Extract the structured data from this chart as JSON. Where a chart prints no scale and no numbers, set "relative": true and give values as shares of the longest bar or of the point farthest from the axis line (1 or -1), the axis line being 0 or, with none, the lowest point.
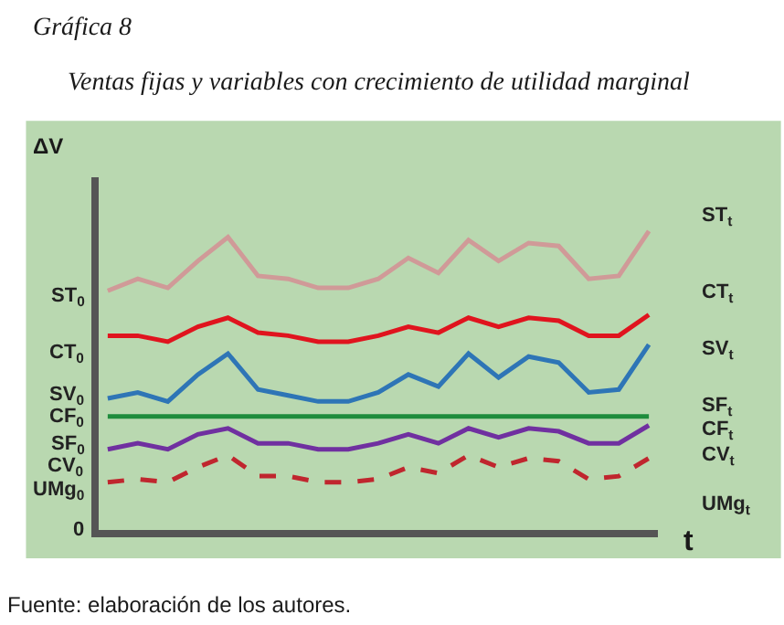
{
  "chart_data": {
    "type": "line",
    "title": "Gráfica 8",
    "subtitle": "Ventas fijas y variables con crecimiento de utilidad marginal",
    "ylabel": "ΔV",
    "xlabel": "t",
    "relative": true,
    "marker": "none",
    "categories": [
      null,
      null,
      null,
      null,
      null,
      null,
      null,
      null,
      null,
      null,
      null,
      null,
      null,
      null,
      null,
      null,
      null,
      null,
      null
    ],
    "series": [
      {
        "color": "#d09a98",
        "values": [
          0.8,
          0.84,
          0.81,
          0.9,
          0.98,
          0.85,
          0.84,
          0.81,
          0.81,
          0.84,
          0.91,
          0.86,
          0.97,
          0.9,
          0.96,
          0.95,
          0.84,
          0.85,
          1.0
        ]
      },
      {
        "color": "#e0141e",
        "values": [
          0.65,
          0.65,
          0.63,
          0.68,
          0.71,
          0.66,
          0.65,
          0.63,
          0.63,
          0.65,
          0.68,
          0.66,
          0.71,
          0.68,
          0.71,
          0.7,
          0.65,
          0.65,
          0.72
        ]
      },
      {
        "color": "#2e75b6",
        "values": [
          0.44,
          0.46,
          0.43,
          0.52,
          0.59,
          0.47,
          0.45,
          0.43,
          0.43,
          0.46,
          0.52,
          0.48,
          0.59,
          0.51,
          0.58,
          0.56,
          0.46,
          0.47,
          0.62
        ]
      },
      {
        "color": "#1e8c3c",
        "values": [
          0.38,
          0.38,
          0.38,
          0.38,
          0.38,
          0.38,
          0.38,
          0.38,
          0.38,
          0.38,
          0.38,
          0.38,
          0.38,
          0.38,
          0.38,
          0.38,
          0.38,
          0.38,
          0.38
        ]
      },
      {
        "color": "#7030a0",
        "values": [
          0.27,
          0.29,
          0.27,
          0.32,
          0.34,
          0.29,
          0.29,
          0.27,
          0.27,
          0.29,
          0.32,
          0.29,
          0.34,
          0.31,
          0.34,
          0.33,
          0.29,
          0.29,
          0.35
        ]
      },
      {
        "color": "#c0262e",
        "line_style": "dashed",
        "values": [
          0.16,
          0.17,
          0.16,
          0.21,
          0.25,
          0.18,
          0.18,
          0.16,
          0.16,
          0.17,
          0.21,
          0.19,
          0.25,
          0.21,
          0.24,
          0.23,
          0.17,
          0.18,
          0.24
        ]
      }
    ],
    "annotations": [
      "0",
      "ST$_{0}$",
      "CT$_{0}$",
      "SV$_{0}$",
      "CF$_{0}$",
      "SF$_{0}$",
      "CV$_{0}$",
      "UMg$_{0}$",
      "ST$_{t}$",
      "CT$_{t}$",
      "SV$_{t}$",
      "SF$_{t}$",
      "CF$_{t}$",
      "CV$_{t}$",
      "UMg$_{t}$",
      "Fuente: elaboración de los autores."
    ]
  }
}
